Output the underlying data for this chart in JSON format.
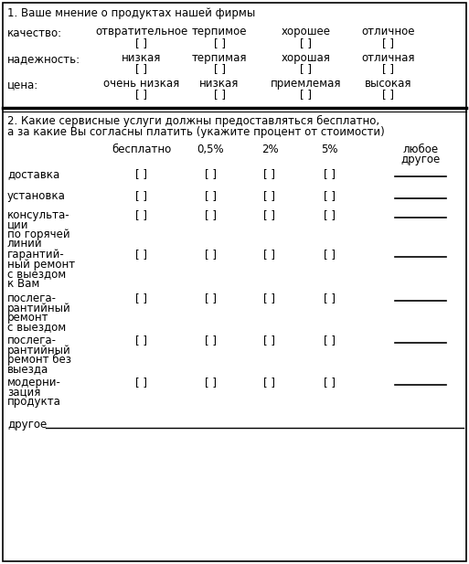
{
  "title1": "1. Ваше мнение о продуктах нашей фирмы",
  "section1_rows": [
    {
      "label": "качество:",
      "cols": [
        "отвратительное",
        "терпимое",
        "хорошее",
        "отличное"
      ]
    },
    {
      "label": "надежность:",
      "cols": [
        "низкая",
        "терпимая",
        "хорошая",
        "отличная"
      ]
    },
    {
      "label": "цена:",
      "cols": [
        "очень низкая",
        "низкая",
        "приемлемая",
        "высокая"
      ]
    }
  ],
  "title2_line1": "2. Какие сервисные услуги должны предоставляться бесплатно,",
  "title2_line2": "а за какие Вы согласны платить (укажите процент от стоимости)",
  "section2_headers": [
    "бесплатно",
    "0,5%",
    "2%",
    "5%",
    "любое\nдругое"
  ],
  "section2_rows": [
    "доставка",
    "установка",
    "консульта-\nции\nпо горячей\nлинии",
    "гарантий-\nный ремонт\nс выездом\nк Вам",
    "послега-\nрантийный\nремонт\nс выездом",
    "послега-\nрантийный\nремонт без\nвыезда",
    "модерни-\nзация\nпродукта",
    "другое"
  ],
  "checkbox": "[ ]",
  "bg_color": "#ffffff",
  "border_color": "#000000",
  "text_color": "#000000",
  "font_size": 8.5
}
